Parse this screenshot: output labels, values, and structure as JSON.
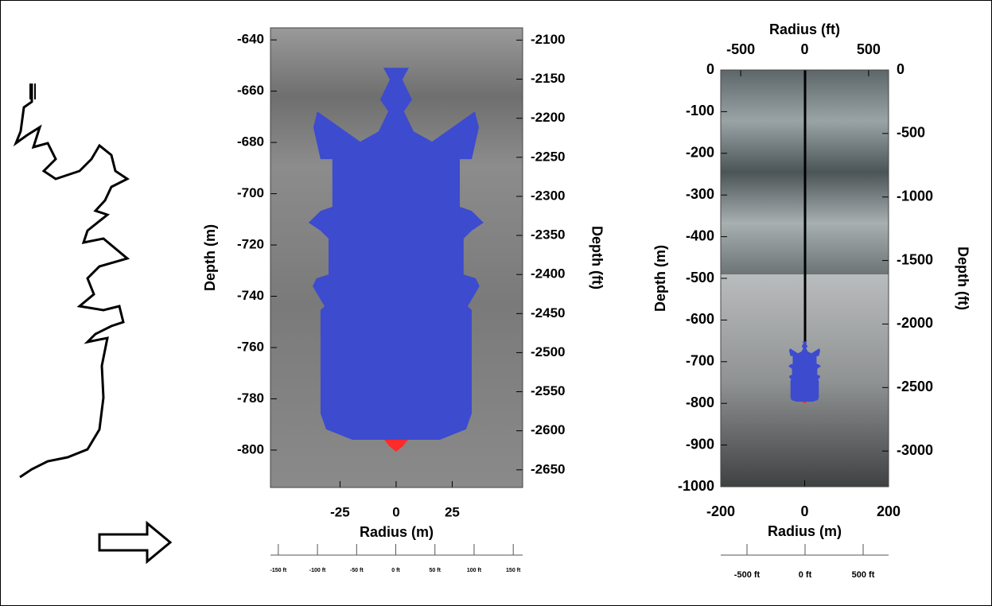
{
  "chart_data": [
    {
      "type": "profile",
      "ylabel": "Depth (m)",
      "y2label": "Depth (ft)",
      "xlabel": "Radius (m)",
      "xlim": [
        -56,
        56.4
      ],
      "xticks": [
        -25,
        0,
        25
      ],
      "ylim": [
        -814.6,
        -635.3
      ],
      "yticks": [
        -640,
        -660,
        -680,
        -700,
        -720,
        -740,
        -760,
        -780,
        -800
      ],
      "y2lim": [
        -2672.6,
        -2084.3
      ],
      "y2ticks": [
        -2100,
        -2150,
        -2200,
        -2250,
        -2300,
        -2350,
        -2400,
        -2450,
        -2500,
        -2550,
        -2600,
        -2650
      ],
      "scale_lim": [
        -160,
        162
      ],
      "scale_ticks": [
        {
          "value": -150,
          "label": "-150 ft"
        },
        {
          "value": -100,
          "label": "-100 ft"
        },
        {
          "value": -50,
          "label": "-50 ft"
        },
        {
          "value": 0,
          "label": "0 ft"
        },
        {
          "value": 50,
          "label": "50 ft"
        },
        {
          "value": 100,
          "label": "100 ft"
        },
        {
          "value": 150,
          "label": "150 ft"
        }
      ],
      "profiles": [
        {
          "color": "#3d4bcf",
          "depth": [
            -650.9,
            -655.5,
            -663.3,
            -667.9,
            -675.7,
            -679.7,
            -667.9,
            -674.1,
            -686.5,
            -686.5,
            -705.1,
            -706.7,
            -711.3,
            -714.4,
            -717.5,
            -731.5,
            -733.0,
            -736.1,
            -743.9,
            -745.4,
            -785.7,
            -791.9,
            -796.0,
            -796.0
          ],
          "radius": [
            5.7,
            2.8,
            7.1,
            3.5,
            7.8,
            16.0,
            35.1,
            36.9,
            33.7,
            28.4,
            28.4,
            33.7,
            39.0,
            33.7,
            30.1,
            30.1,
            35.5,
            37.2,
            31.9,
            33.7,
            33.7,
            31.2,
            19.5,
            0
          ]
        },
        {
          "color": "#ff2a2a",
          "depth": [
            -796.0,
            -798.5,
            -800.6
          ],
          "radius": [
            5.3,
            3.0,
            0
          ]
        }
      ]
    },
    {
      "type": "profile",
      "ylabel": "Depth (m)",
      "y2label": "Depth (ft)",
      "xlabel": "Radius (m)",
      "x2label": "Radius (ft)",
      "xlim": [
        -200,
        200
      ],
      "xticks": [
        -200,
        0,
        200
      ],
      "x2lim": [
        -656.2,
        656.2
      ],
      "x2ticks": [
        -500,
        0,
        500
      ],
      "ylim": [
        -1000,
        0
      ],
      "yticks": [
        0,
        -100,
        -200,
        -300,
        -400,
        -500,
        -600,
        -700,
        -800,
        -900,
        -1000
      ],
      "y2lim": [
        -3280.8,
        0
      ],
      "y2ticks": [
        0,
        -500,
        -1000,
        -1500,
        -2000,
        -2500,
        -3000
      ],
      "scale_lim": [
        -726,
        719
      ],
      "scale_ticks": [
        {
          "value": -500,
          "label": "-500 ft"
        },
        {
          "value": 0,
          "label": "0 ft"
        },
        {
          "value": 500,
          "label": "500 ft"
        }
      ]
    }
  ]
}
